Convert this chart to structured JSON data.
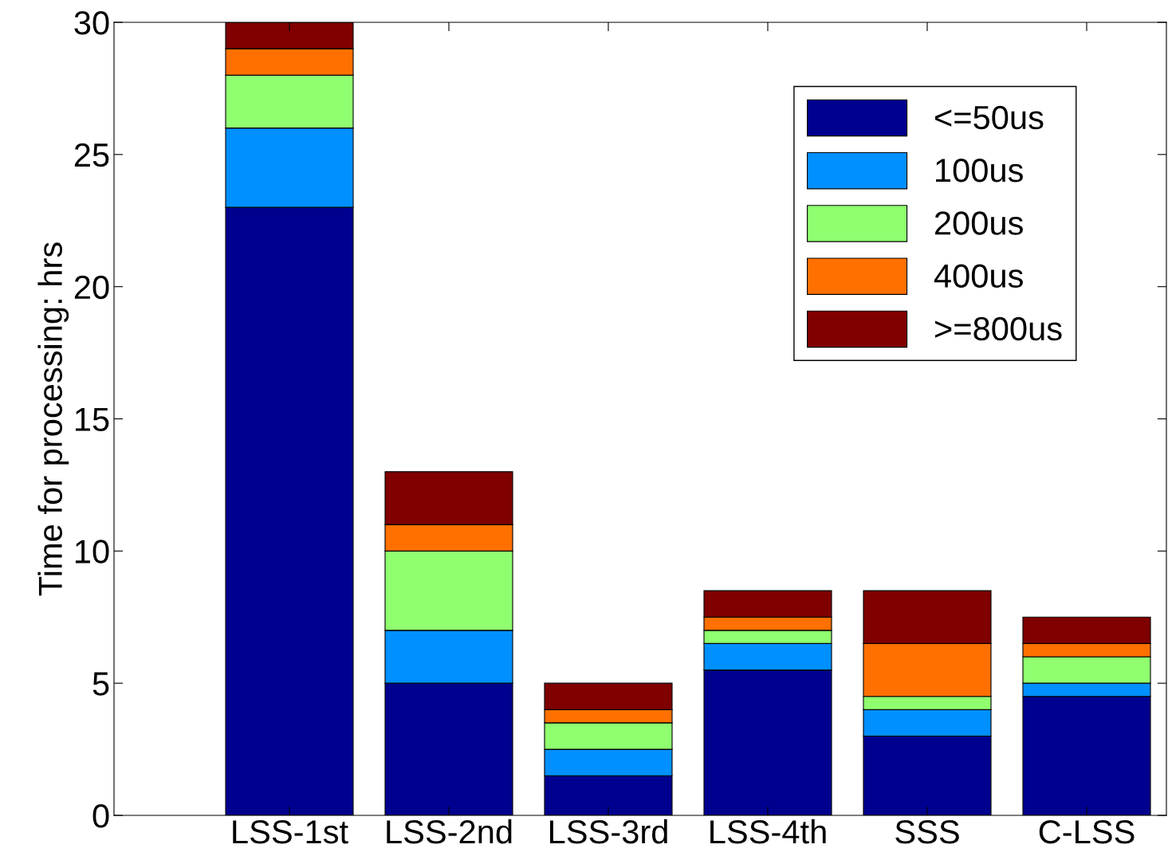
{
  "chart_data": {
    "type": "bar",
    "stacked": true,
    "ylabel": "Time for processing: hrs",
    "categories": [
      "LSS-1st",
      "LSS-2nd",
      "LSS-3rd",
      "LSS-4th",
      "SSS",
      "C-LSS"
    ],
    "series": [
      {
        "name": "<=50us",
        "color": "#00008f",
        "values": [
          23,
          5,
          1.5,
          5.5,
          3,
          4.5
        ]
      },
      {
        "name": "100us",
        "color": "#0090ff",
        "values": [
          3,
          2,
          1,
          1,
          1,
          0.5
        ]
      },
      {
        "name": "200us",
        "color": "#8fff70",
        "values": [
          2,
          3,
          1,
          0.5,
          0.5,
          1
        ]
      },
      {
        "name": "400us",
        "color": "#ff7000",
        "values": [
          1,
          1,
          0.5,
          0.5,
          2,
          0.5
        ]
      },
      {
        "name": ">=800us",
        "color": "#800000",
        "values": [
          1,
          2,
          1,
          1,
          2,
          1
        ]
      }
    ],
    "ylim": [
      0,
      30
    ],
    "yticks": [
      0,
      5,
      10,
      15,
      20,
      25,
      30
    ],
    "grid": false,
    "legend": "top right"
  }
}
